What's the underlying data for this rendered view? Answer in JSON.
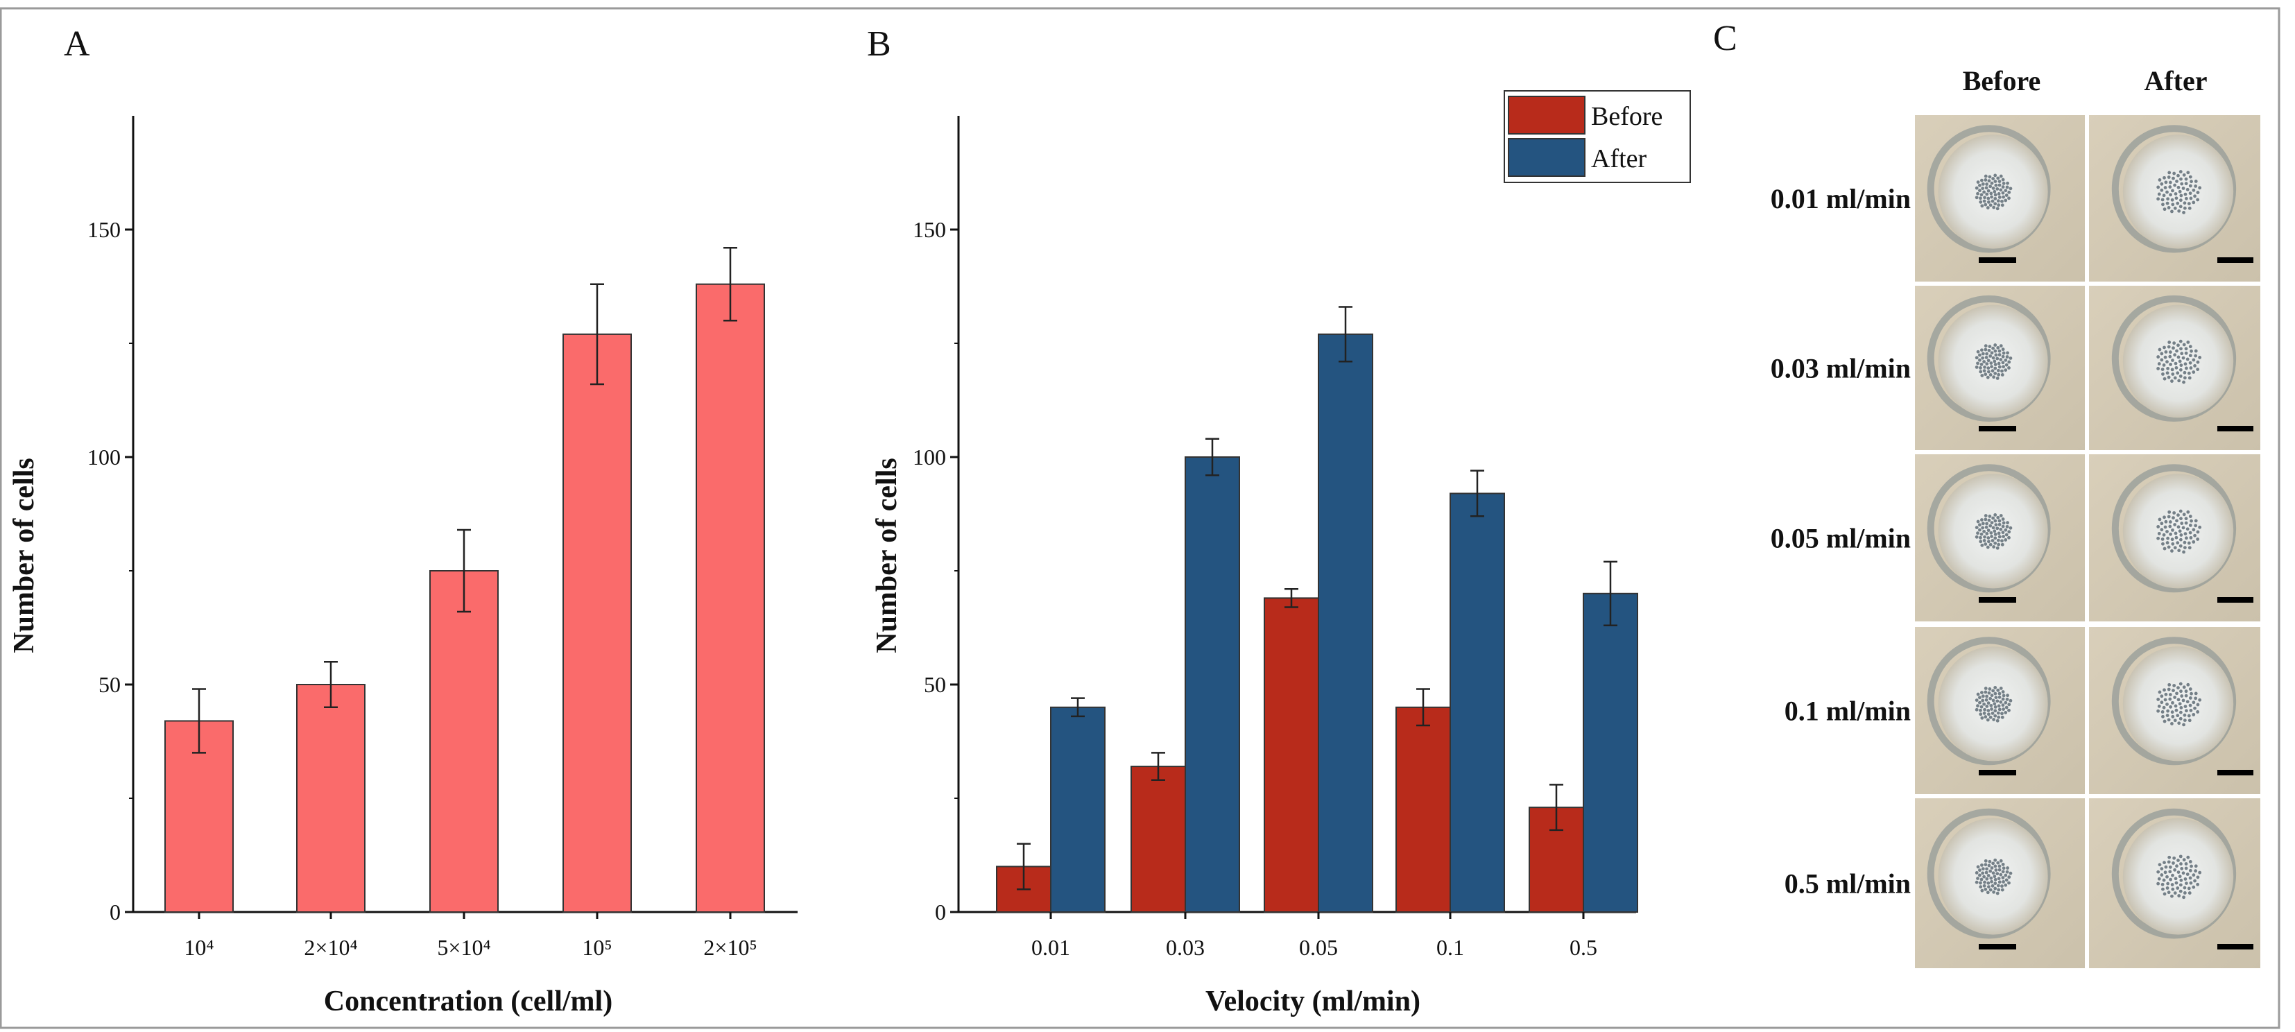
{
  "colors": {
    "bar_a": "#FA6B6B",
    "before": "#B82B1B",
    "after": "#245480",
    "axis": "#111111",
    "frame": "#9a9a9a"
  },
  "chart_data": [
    {
      "panel": "A",
      "type": "bar",
      "categories": [
        "10⁴",
        "2×10⁴",
        "5×10⁴",
        "10⁵",
        "2×10⁵"
      ],
      "values": [
        42,
        50,
        75,
        127,
        138
      ],
      "errors": [
        7,
        5,
        9,
        11,
        8
      ],
      "xlabel": "Concentration (cell/ml)",
      "ylabel": "Number of cells",
      "yticks": [
        0,
        50,
        100,
        150
      ],
      "ylim": [
        0,
        175
      ]
    },
    {
      "panel": "B",
      "type": "bar",
      "categories": [
        "0.01",
        "0.03",
        "0.05",
        "0.1",
        "0.5"
      ],
      "series": [
        {
          "name": "Before",
          "values": [
            10,
            32,
            69,
            45,
            23
          ],
          "errors": [
            5,
            3,
            2,
            4,
            5
          ]
        },
        {
          "name": "After",
          "values": [
            45,
            100,
            127,
            92,
            70
          ],
          "errors": [
            2,
            4,
            6,
            5,
            7
          ]
        }
      ],
      "xlabel": "Velocity (ml/min)",
      "ylabel": "Number of cells",
      "yticks": [
        0,
        50,
        100,
        150
      ],
      "ylim": [
        0,
        175
      ],
      "legend": "top-right"
    }
  ],
  "panel_c": {
    "label": "C",
    "columns": [
      "Before",
      "After"
    ],
    "rows": [
      "0.01 ml/min",
      "0.03 ml/min",
      "0.05 ml/min",
      "0.1 ml/min",
      "0.5 ml/min"
    ]
  }
}
